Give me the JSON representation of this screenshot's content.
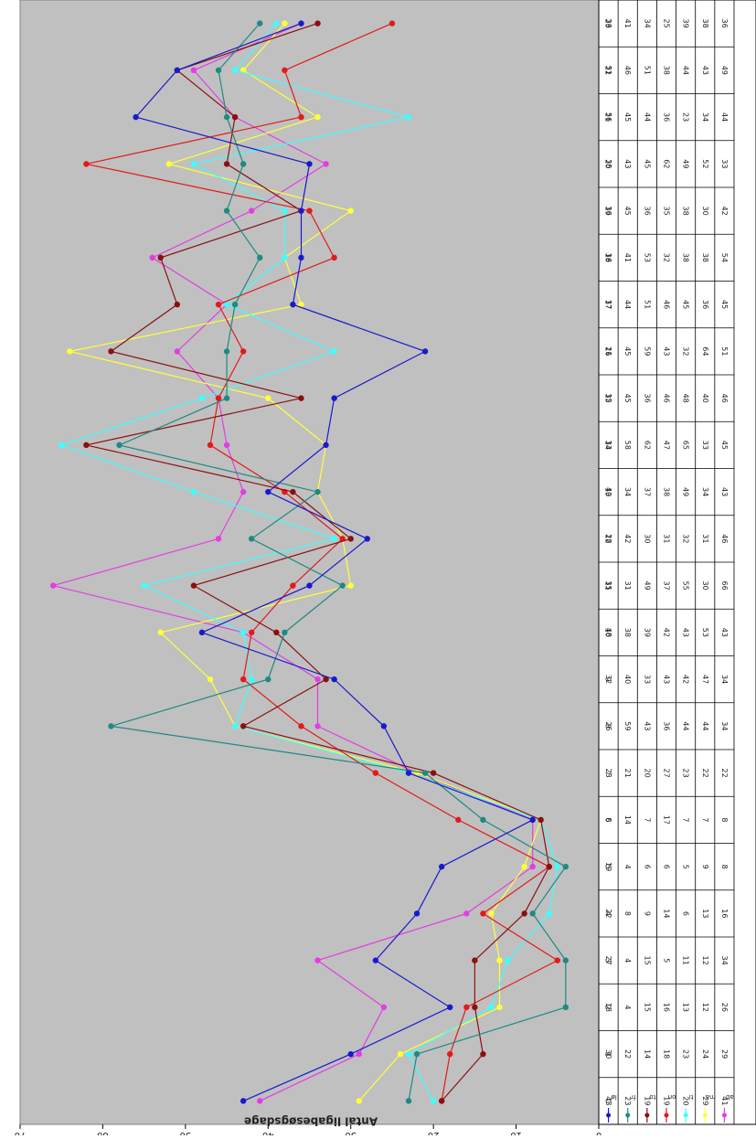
{
  "chart_data": {
    "type": "line",
    "ylabel": "Antal ligabesøgsdage",
    "ylim": [
      0,
      70
    ],
    "yticks": [
      0,
      10,
      20,
      30,
      40,
      50,
      60,
      70
    ],
    "categories": [
      "0",
      "1",
      "2",
      "3",
      "4",
      "5",
      "6",
      "7",
      "8",
      "9",
      "10",
      "11",
      "12",
      "13",
      "14",
      "15",
      "16",
      "17",
      "18",
      "19",
      "20",
      "21",
      "22",
      "23"
    ],
    "grid": false,
    "legend": "data table rows",
    "series": [
      {
        "name": "ab",
        "color": "#e23ee2",
        "values": [
          41,
          29,
          26,
          34,
          16,
          8,
          8,
          22,
          34,
          34,
          43,
          66,
          46,
          43,
          45,
          46,
          51,
          45,
          54,
          42,
          33,
          44,
          49,
          36
        ]
      },
      {
        "name": "ma",
        "color": "#ffff3c",
        "values": [
          29,
          24,
          12,
          12,
          13,
          9,
          7,
          22,
          44,
          47,
          53,
          30,
          31,
          34,
          33,
          40,
          64,
          36,
          38,
          30,
          52,
          34,
          43,
          38
        ]
      },
      {
        "name": "ti",
        "color": "#3cffff",
        "values": [
          20,
          23,
          13,
          11,
          6,
          5,
          7,
          23,
          44,
          42,
          43,
          55,
          32,
          49,
          65,
          48,
          32,
          45,
          38,
          38,
          49,
          23,
          44,
          39
        ]
      },
      {
        "name": "on",
        "color": "#e21a1a",
        "values": [
          19,
          18,
          16,
          5,
          14,
          6,
          17,
          27,
          36,
          43,
          42,
          37,
          31,
          38,
          47,
          46,
          43,
          46,
          32,
          35,
          62,
          36,
          38,
          25
        ]
      },
      {
        "name": "to",
        "color": "#8a1010",
        "values": [
          19,
          14,
          15,
          15,
          9,
          6,
          7,
          20,
          43,
          33,
          39,
          49,
          30,
          37,
          62,
          36,
          59,
          51,
          53,
          36,
          45,
          44,
          51,
          34
        ]
      },
      {
        "name": "fr",
        "color": "#1e8a82",
        "values": [
          23,
          22,
          4,
          4,
          8,
          4,
          14,
          21,
          59,
          40,
          38,
          31,
          42,
          34,
          58,
          45,
          45,
          44,
          41,
          45,
          43,
          45,
          46,
          41
        ]
      },
      {
        "name": "lø",
        "color": "#1a1acc",
        "values": [
          43,
          30,
          18,
          27,
          22,
          19,
          8,
          23,
          26,
          32,
          48,
          35,
          28,
          40,
          33,
          32,
          21,
          37,
          36,
          36,
          35,
          56,
          51,
          36
        ]
      }
    ]
  }
}
